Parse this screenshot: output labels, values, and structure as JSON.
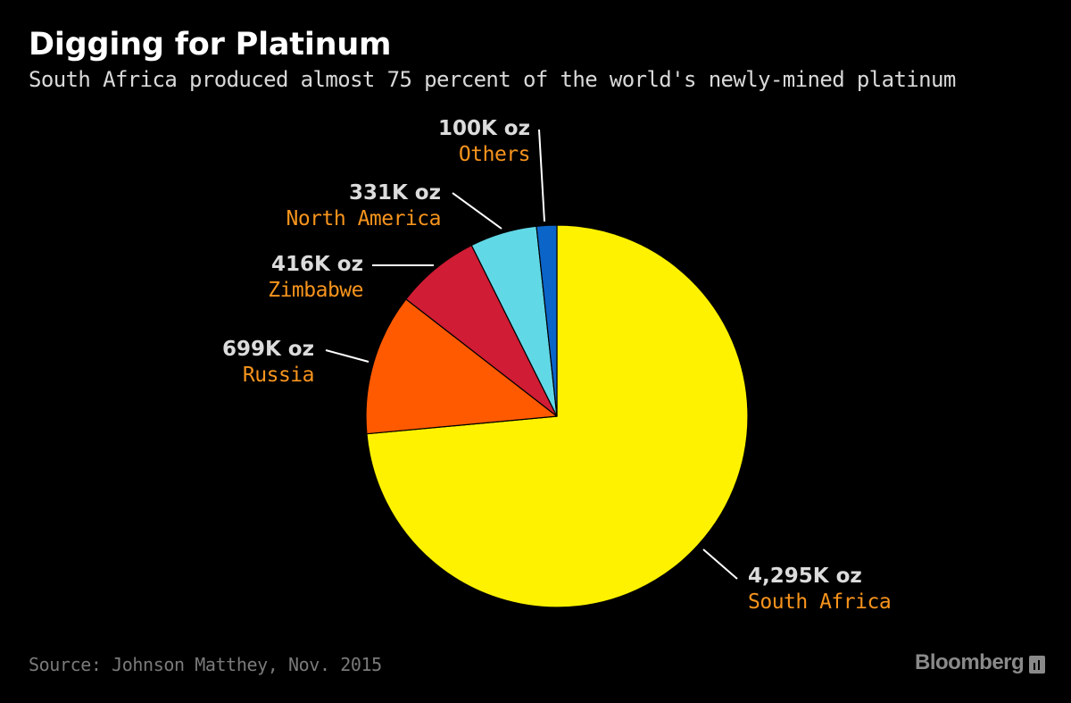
{
  "header": {
    "title": "Digging for Platinum",
    "subtitle": "South Africa produced almost 75 percent of the world's newly-mined platinum"
  },
  "footer": {
    "source": "Source: Johnson Matthey, Nov. 2015",
    "brand": "Bloomberg"
  },
  "colors": {
    "value_label": "#dcdcdc",
    "name_label": "#f7941d",
    "leader_line": "#ffffff",
    "slice_outline": "#000000"
  },
  "chart_data": {
    "type": "pie",
    "title": "Digging for Platinum",
    "unit": "K oz",
    "slices": [
      {
        "name": "South Africa",
        "value": 4295,
        "label": "4,295K oz",
        "color": "#fff200"
      },
      {
        "name": "Russia",
        "value": 699,
        "label": "699K oz",
        "color": "#ff5a00"
      },
      {
        "name": "Zimbabwe",
        "value": 416,
        "label": "416K oz",
        "color": "#d01c34"
      },
      {
        "name": "North America",
        "value": 331,
        "label": "331K oz",
        "color": "#61d8e6"
      },
      {
        "name": "Others",
        "value": 100,
        "label": "100K oz",
        "color": "#0b64c8"
      }
    ]
  }
}
